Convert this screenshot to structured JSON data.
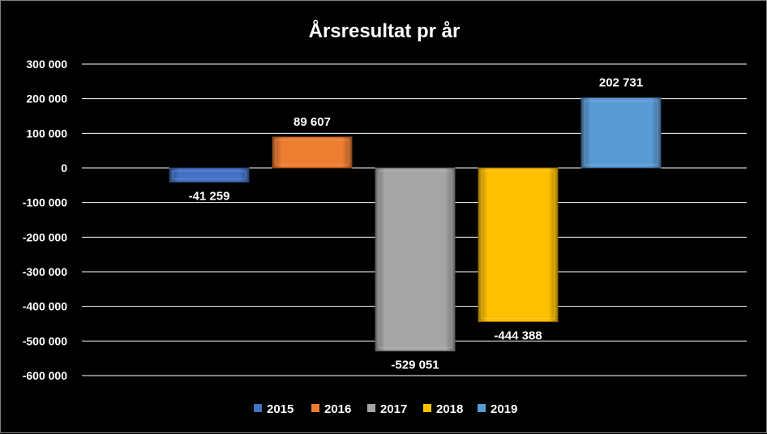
{
  "chart_data": {
    "type": "bar",
    "title": "Årsresultat pr år",
    "xlabel": "",
    "ylabel": "",
    "ylim": [
      -600000,
      300000
    ],
    "yticks": [
      300000,
      200000,
      100000,
      0,
      -100000,
      -200000,
      -300000,
      -400000,
      -500000,
      -600000
    ],
    "ytick_labels": [
      "300 000",
      "200 000",
      "100 000",
      "0",
      "-100 000",
      "-200 000",
      "-300 000",
      "-400 000",
      "-500 000",
      "-600 000"
    ],
    "grid": true,
    "legend_position": "bottom",
    "series": [
      {
        "name": "2015",
        "value": -41259,
        "label": "-41 259",
        "color": "#4472c4"
      },
      {
        "name": "2016",
        "value": 89607,
        "label": "89 607",
        "color": "#ed7d31"
      },
      {
        "name": "2017",
        "value": -529051,
        "label": "-529 051",
        "color": "#a5a5a5"
      },
      {
        "name": "2018",
        "value": -444388,
        "label": "-444 388",
        "color": "#ffc000"
      },
      {
        "name": "2019",
        "value": 202731,
        "label": "202 731",
        "color": "#5b9bd5"
      }
    ]
  }
}
